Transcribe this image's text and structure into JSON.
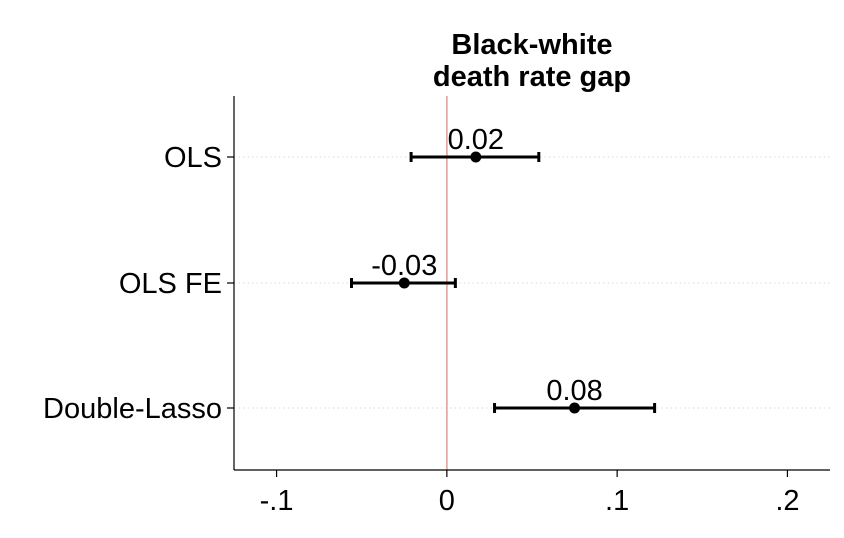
{
  "chart_data": {
    "type": "scatter",
    "title_lines": [
      "Black-white",
      "death rate gap"
    ],
    "categories": [
      "OLS",
      "OLS FE",
      "Double-Lasso"
    ],
    "estimates": [
      0.017,
      -0.025,
      0.075
    ],
    "ci_lower": [
      -0.021,
      -0.056,
      0.028
    ],
    "ci_upper": [
      0.054,
      0.005,
      0.122
    ],
    "data_labels": [
      "0.02",
      "-0.03",
      "0.08"
    ],
    "x_ticks": [
      -0.1,
      0,
      0.1,
      0.2
    ],
    "x_tick_labels": [
      "-.1",
      "0",
      ".1",
      ".2"
    ],
    "xlim": [
      -0.125,
      0.225
    ],
    "reference_line_x": 0,
    "reference_line_color": "#e8a09a",
    "marker_color": "#000000",
    "grid": "horizontal dotted",
    "legend": "none"
  }
}
